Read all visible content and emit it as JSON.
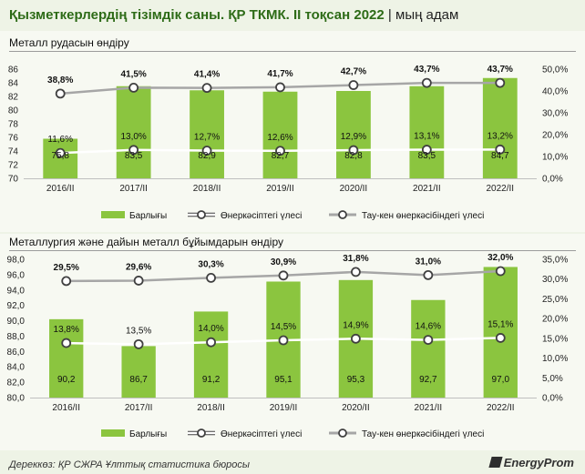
{
  "header": {
    "title": "Қызметкерлердің тізімдік саны. ҚР ТКМК. II тоқсан 2022",
    "separator": "|",
    "unit": "мың адам"
  },
  "footer": {
    "source": "Дереккөз: ҚР СЖРА Ұлттық статистика бюросы",
    "brand": "EnergyProm",
    "brand_icon": "energyprom-logo-icon"
  },
  "colors": {
    "bar": "#8bc53f",
    "share_line": "#ffffff",
    "mining_share_line": "#a6a6a6",
    "title": "#2d6b17"
  },
  "chart_data": [
    {
      "type": "bar",
      "title": "Металл рудасын өндіру",
      "categories": [
        "2016/II",
        "2017/II",
        "2018/II",
        "2019/II",
        "2020/II",
        "2021/II",
        "2022/II"
      ],
      "series": [
        {
          "name": "Барлығы",
          "type": "bar",
          "axis": "left",
          "values": [
            75.8,
            83.5,
            82.9,
            82.7,
            82.8,
            83.5,
            84.7
          ],
          "labels": [
            "75,8",
            "83,5",
            "82,9",
            "82,7",
            "82,8",
            "83,5",
            "84,7"
          ]
        },
        {
          "name": "Өнеркәсіптегі үлесі",
          "type": "line",
          "axis": "right",
          "values": [
            11.6,
            13.0,
            12.7,
            12.6,
            12.9,
            13.1,
            13.2
          ],
          "labels": [
            "11,6%",
            "13,0%",
            "12,7%",
            "12,6%",
            "12,9%",
            "13,1%",
            "13,2%"
          ]
        },
        {
          "name": "Тау-кен өнеркәсібіндегі үлесі",
          "type": "line",
          "axis": "right",
          "values": [
            38.8,
            41.5,
            41.4,
            41.7,
            42.7,
            43.7,
            43.7
          ],
          "labels": [
            "38,8%",
            "41,5%",
            "41,4%",
            "41,7%",
            "42,7%",
            "43,7%",
            "43,7%"
          ]
        }
      ],
      "ylim": [
        70,
        86
      ],
      "yticks": [
        "70",
        "72",
        "74",
        "76",
        "78",
        "80",
        "82",
        "84",
        "86"
      ],
      "ylim_right": [
        0,
        50
      ],
      "yticks_right": [
        "0,0%",
        "10,0%",
        "20,0%",
        "30,0%",
        "40,0%",
        "50,0%"
      ],
      "legend": {
        "position": "bottom",
        "items": [
          "Барлығы",
          "Өнеркәсіптегі үлесі",
          "Тау-кен өнеркәсібіндегі үлесі"
        ]
      }
    },
    {
      "type": "bar",
      "title": "Металлургия және дайын металл бұйымдарын өндіру",
      "categories": [
        "2016/II",
        "2017/II",
        "2018/II",
        "2019/II",
        "2020/II",
        "2021/II",
        "2022/II"
      ],
      "series": [
        {
          "name": "Барлығы",
          "type": "bar",
          "axis": "left",
          "values": [
            90.2,
            86.7,
            91.2,
            95.1,
            95.3,
            92.7,
            97.0
          ],
          "labels": [
            "90,2",
            "86,7",
            "91,2",
            "95,1",
            "95,3",
            "92,7",
            "97,0"
          ]
        },
        {
          "name": "Өнеркәсіптегі үлесі",
          "type": "line",
          "axis": "right",
          "values": [
            13.8,
            13.5,
            14.0,
            14.5,
            14.9,
            14.6,
            15.1
          ],
          "labels": [
            "13,8%",
            "13,5%",
            "14,0%",
            "14,5%",
            "14,9%",
            "14,6%",
            "15,1%"
          ]
        },
        {
          "name": "Тау-кен өнеркәсібіндегі үлесі",
          "type": "line",
          "axis": "right",
          "values": [
            29.5,
            29.6,
            30.3,
            30.9,
            31.8,
            31.0,
            32.0
          ],
          "labels": [
            "29,5%",
            "29,6%",
            "30,3%",
            "30,9%",
            "31,8%",
            "31,0%",
            "32,0%"
          ]
        }
      ],
      "ylim": [
        80,
        98
      ],
      "yticks": [
        "80,0",
        "82,0",
        "84,0",
        "86,0",
        "88,0",
        "90,0",
        "92,0",
        "94,0",
        "96,0",
        "98,0"
      ],
      "ylim_right": [
        0,
        35
      ],
      "yticks_right": [
        "0,0%",
        "5,0%",
        "10,0%",
        "15,0%",
        "20,0%",
        "25,0%",
        "30,0%",
        "35,0%"
      ],
      "legend": {
        "position": "bottom",
        "items": [
          "Барлығы",
          "Өнеркәсіптегі үлесі",
          "Тау-кен өнеркәсібіндегі үлесі"
        ]
      }
    }
  ]
}
